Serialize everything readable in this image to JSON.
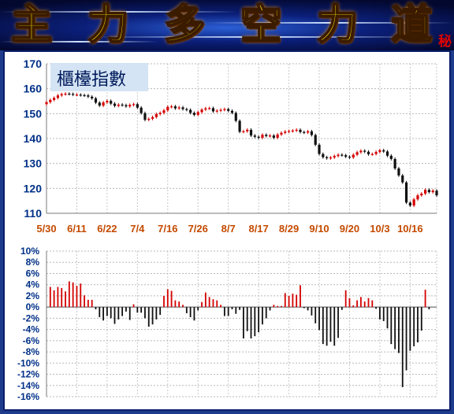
{
  "banner": {
    "chars": [
      "主",
      "力",
      "多",
      "空",
      "力",
      "道"
    ],
    "secret": "秘",
    "color": "#ffe600"
  },
  "chart_data": [
    {
      "type": "candlestick",
      "title": "櫃檯指數",
      "ylim": [
        110,
        170
      ],
      "yticks": [
        110,
        120,
        130,
        140,
        150,
        160,
        170
      ],
      "xticks": [
        "5/30",
        "6/11",
        "6/22",
        "7/4",
        "7/16",
        "7/26",
        "8/7",
        "8/17",
        "8/29",
        "9/10",
        "9/20",
        "10/3",
        "10/16"
      ],
      "close": [
        154.6,
        155.5,
        156.3,
        157.3,
        157.8,
        158.0,
        157.9,
        157.6,
        157.6,
        157.4,
        157.3,
        156.8,
        156.1,
        154.4,
        153.2,
        154.5,
        155.1,
        154.0,
        153.1,
        153.6,
        153.4,
        152.9,
        153.5,
        153.8,
        152.4,
        150.2,
        147.5,
        147.9,
        148.6,
        149.8,
        150.3,
        151.3,
        152.7,
        152.9,
        152.1,
        152.5,
        151.8,
        151.5,
        150.3,
        149.5,
        150.6,
        151.6,
        152.1,
        152.2,
        150.9,
        151.2,
        151.5,
        151.8,
        151.1,
        150.3,
        147.1,
        142.7,
        142.9,
        143.5,
        141.2,
        140.7,
        140.3,
        141.5,
        141.0,
        141.2,
        140.3,
        141.6,
        142.3,
        142.8,
        143.0,
        143.2,
        143.5,
        142.6,
        142.4,
        142.9,
        141.4,
        137.5,
        133.8,
        132.5,
        132.1,
        132.4,
        133.0,
        133.5,
        133.3,
        132.7,
        132.4,
        133.5,
        134.5,
        135.1,
        134.7,
        133.7,
        133.8,
        134.6,
        135.3,
        134.8,
        133.1,
        131.8,
        128.0,
        125.2,
        122.4,
        114.3,
        113.1,
        115.6,
        117.2,
        117.9,
        119.4,
        118.5,
        119.1,
        117.2
      ],
      "pct_change": [
        3.6,
        3.0,
        3.6,
        3.4,
        2.8,
        4.6,
        4.4,
        3.8,
        4.2,
        2.1,
        1.3,
        1.3,
        -0.4,
        -1.8,
        -2.4,
        -1.6,
        -2.0,
        -3.0,
        -2.2,
        -1.6,
        -0.8,
        -2.3,
        0.5,
        -1.0,
        -1.0,
        -2.0,
        -3.5,
        -3.1,
        -2.2,
        -1.4,
        2.0,
        3.2,
        2.9,
        1.2,
        1.0,
        0.4,
        -1.1,
        -1.8,
        -2.4,
        -0.6,
        0.9,
        2.6,
        1.8,
        1.4,
        1.2,
        0.4,
        -1.6,
        -1.6,
        -0.4,
        -1.2,
        -0.5,
        -5.6,
        -4.3,
        -5.6,
        -5.2,
        -4.5,
        -3.1,
        -2.0,
        -0.6,
        0.4,
        0.2,
        0.2,
        2.5,
        2.0,
        2.4,
        2.2,
        3.9,
        -0.2,
        -0.6,
        -1.5,
        -2.9,
        -4.1,
        -6.6,
        -6.9,
        -6.2,
        -6.9,
        -5.5,
        -0.5,
        3.0,
        1.6,
        0.3,
        1.2,
        1.8,
        1.0,
        1.6,
        1.2,
        -0.3,
        -2.2,
        -2.5,
        -3.8,
        -6.6,
        -7.5,
        -8.2,
        -14.3,
        -11.3,
        -7.8,
        -7.0,
        -6.3,
        -4.2,
        3.1,
        -0.4
      ],
      "ylim2": [
        -16,
        10
      ],
      "yticks2": [
        "10%",
        "8%",
        "6%",
        "4%",
        "2%",
        "0%",
        "-2%",
        "-4%",
        "-6%",
        "-8%",
        "-10%",
        "-12%",
        "-14%",
        "-16%"
      ],
      "up_color": "#d40000",
      "down_color": "#111111"
    }
  ]
}
